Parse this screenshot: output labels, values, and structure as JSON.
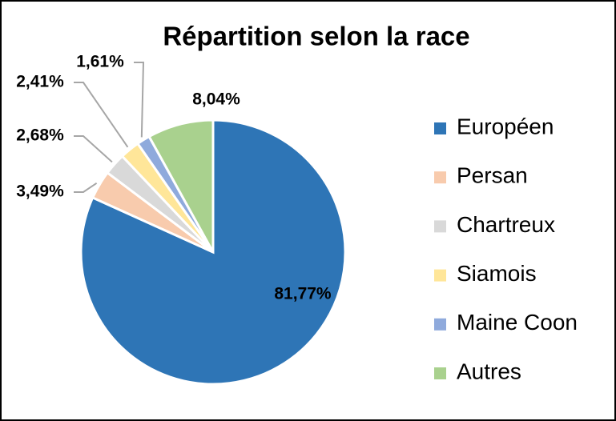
{
  "chart_data": {
    "type": "pie",
    "title": "Répartition selon la race",
    "categories": [
      "Européen",
      "Persan",
      "Chartreux",
      "Siamois",
      "Maine Coon",
      "Autres"
    ],
    "values": [
      81.77,
      3.49,
      2.68,
      2.41,
      1.61,
      8.04
    ],
    "value_labels": [
      "81,77%",
      "3,49%",
      "2,68%",
      "2,41%",
      "1,61%",
      "8,04%"
    ],
    "colors": [
      "#2e75b6",
      "#f8cbad",
      "#d9d9d9",
      "#ffe699",
      "#8faadc",
      "#a9d18e"
    ],
    "legend": "right"
  }
}
